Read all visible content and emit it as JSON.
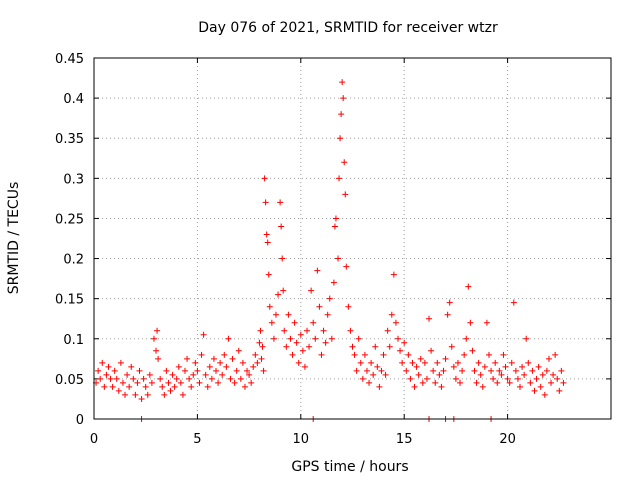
{
  "chart_data": {
    "type": "scatter",
    "title": "Day 076 of 2021, SRMTID for receiver wtzr",
    "xlabel": "GPS time / hours",
    "ylabel": "SRMTID / TECUs",
    "xlim": [
      0,
      25
    ],
    "ylim": [
      0,
      0.45
    ],
    "x_ticks": [
      0,
      5,
      10,
      15,
      20
    ],
    "x_tick_labels": [
      "0",
      "5",
      "10",
      "15",
      "20"
    ],
    "y_ticks": [
      0,
      0.05,
      0.1,
      0.15,
      0.2,
      0.25,
      0.3,
      0.35,
      0.4,
      0.45
    ],
    "y_tick_labels": [
      "0",
      "0.05",
      "0.1",
      "0.15",
      "0.2",
      "0.25",
      "0.3",
      "0.35",
      "0.4",
      "0.45"
    ],
    "grid": true,
    "marker": "+",
    "color": "#ff0000",
    "series": [
      {
        "name": "SRMTID",
        "points": [
          [
            0.1,
            0.045
          ],
          [
            0.2,
            0.06
          ],
          [
            0.3,
            0.05
          ],
          [
            0.4,
            0.07
          ],
          [
            0.5,
            0.04
          ],
          [
            0.6,
            0.055
          ],
          [
            0.7,
            0.065
          ],
          [
            0.8,
            0.05
          ],
          [
            0.9,
            0.04
          ],
          [
            1.0,
            0.06
          ],
          [
            1.1,
            0.05
          ],
          [
            1.2,
            0.035
          ],
          [
            1.3,
            0.07
          ],
          [
            1.4,
            0.045
          ],
          [
            1.5,
            0.03
          ],
          [
            1.6,
            0.055
          ],
          [
            1.7,
            0.04
          ],
          [
            1.8,
            0.065
          ],
          [
            1.9,
            0.05
          ],
          [
            2.0,
            0.03
          ],
          [
            2.1,
            0.045
          ],
          [
            2.2,
            0.06
          ],
          [
            2.3,
            0.025
          ],
          [
            2.4,
            0.05
          ],
          [
            2.5,
            0.04
          ],
          [
            2.6,
            0.03
          ],
          [
            2.7,
            0.055
          ],
          [
            2.8,
            0.045
          ],
          [
            2.9,
            0.1
          ],
          [
            3.0,
            0.085
          ],
          [
            3.05,
            0.11
          ],
          [
            3.1,
            0.075
          ],
          [
            3.2,
            0.05
          ],
          [
            3.3,
            0.04
          ],
          [
            3.4,
            0.03
          ],
          [
            3.5,
            0.06
          ],
          [
            3.6,
            0.045
          ],
          [
            3.7,
            0.035
          ],
          [
            3.8,
            0.055
          ],
          [
            3.9,
            0.04
          ],
          [
            4.0,
            0.05
          ],
          [
            4.1,
            0.065
          ],
          [
            4.2,
            0.045
          ],
          [
            4.3,
            0.03
          ],
          [
            4.4,
            0.06
          ],
          [
            4.5,
            0.075
          ],
          [
            4.6,
            0.05
          ],
          [
            4.7,
            0.04
          ],
          [
            4.8,
            0.055
          ],
          [
            4.9,
            0.07
          ],
          [
            5.0,
            0.06
          ],
          [
            5.1,
            0.045
          ],
          [
            5.2,
            0.08
          ],
          [
            5.3,
            0.105
          ],
          [
            5.4,
            0.055
          ],
          [
            5.5,
            0.04
          ],
          [
            5.6,
            0.065
          ],
          [
            5.7,
            0.05
          ],
          [
            5.8,
            0.075
          ],
          [
            5.9,
            0.06
          ],
          [
            6.0,
            0.045
          ],
          [
            6.1,
            0.07
          ],
          [
            6.2,
            0.055
          ],
          [
            6.3,
            0.08
          ],
          [
            6.4,
            0.065
          ],
          [
            6.5,
            0.1
          ],
          [
            6.6,
            0.05
          ],
          [
            6.7,
            0.075
          ],
          [
            6.8,
            0.045
          ],
          [
            6.9,
            0.06
          ],
          [
            7.0,
            0.085
          ],
          [
            7.1,
            0.05
          ],
          [
            7.2,
            0.07
          ],
          [
            7.3,
            0.04
          ],
          [
            7.4,
            0.06
          ],
          [
            7.5,
            0.055
          ],
          [
            7.6,
            0.045
          ],
          [
            7.7,
            0.065
          ],
          [
            7.8,
            0.08
          ],
          [
            7.9,
            0.07
          ],
          [
            8.0,
            0.095
          ],
          [
            8.05,
            0.11
          ],
          [
            8.1,
            0.075
          ],
          [
            8.15,
            0.09
          ],
          [
            8.2,
            0.06
          ],
          [
            8.25,
            0.3
          ],
          [
            8.3,
            0.27
          ],
          [
            8.35,
            0.23
          ],
          [
            8.4,
            0.22
          ],
          [
            8.45,
            0.18
          ],
          [
            8.5,
            0.14
          ],
          [
            8.6,
            0.12
          ],
          [
            8.7,
            0.1
          ],
          [
            8.8,
            0.13
          ],
          [
            8.9,
            0.155
          ],
          [
            9.0,
            0.27
          ],
          [
            9.05,
            0.24
          ],
          [
            9.1,
            0.2
          ],
          [
            9.15,
            0.16
          ],
          [
            9.2,
            0.11
          ],
          [
            9.3,
            0.09
          ],
          [
            9.4,
            0.13
          ],
          [
            9.5,
            0.1
          ],
          [
            9.6,
            0.08
          ],
          [
            9.7,
            0.12
          ],
          [
            9.8,
            0.095
          ],
          [
            9.9,
            0.07
          ],
          [
            10.0,
            0.105
          ],
          [
            10.1,
            0.085
          ],
          [
            10.2,
            0.065
          ],
          [
            10.3,
            0.11
          ],
          [
            10.4,
            0.09
          ],
          [
            10.5,
            0.16
          ],
          [
            10.6,
            0.12
          ],
          [
            10.7,
            0.1
          ],
          [
            10.8,
            0.185
          ],
          [
            10.9,
            0.14
          ],
          [
            11.0,
            0.08
          ],
          [
            11.1,
            0.11
          ],
          [
            11.2,
            0.095
          ],
          [
            11.3,
            0.13
          ],
          [
            11.4,
            0.15
          ],
          [
            11.5,
            0.1
          ],
          [
            11.6,
            0.17
          ],
          [
            11.65,
            0.24
          ],
          [
            11.7,
            0.25
          ],
          [
            11.8,
            0.2
          ],
          [
            11.85,
            0.3
          ],
          [
            11.9,
            0.35
          ],
          [
            11.95,
            0.38
          ],
          [
            12.0,
            0.42
          ],
          [
            12.05,
            0.4
          ],
          [
            12.1,
            0.32
          ],
          [
            12.15,
            0.28
          ],
          [
            12.2,
            0.19
          ],
          [
            12.3,
            0.14
          ],
          [
            12.4,
            0.11
          ],
          [
            12.5,
            0.09
          ],
          [
            12.6,
            0.08
          ],
          [
            12.7,
            0.06
          ],
          [
            12.8,
            0.1
          ],
          [
            12.9,
            0.07
          ],
          [
            13.0,
            0.05
          ],
          [
            13.1,
            0.08
          ],
          [
            13.2,
            0.06
          ],
          [
            13.3,
            0.045
          ],
          [
            13.4,
            0.07
          ],
          [
            13.5,
            0.055
          ],
          [
            13.6,
            0.09
          ],
          [
            13.7,
            0.065
          ],
          [
            13.8,
            0.04
          ],
          [
            13.9,
            0.06
          ],
          [
            14.0,
            0.08
          ],
          [
            14.1,
            0.055
          ],
          [
            14.2,
            0.11
          ],
          [
            14.3,
            0.09
          ],
          [
            14.4,
            0.13
          ],
          [
            14.5,
            0.18
          ],
          [
            14.6,
            0.12
          ],
          [
            14.7,
            0.1
          ],
          [
            14.8,
            0.085
          ],
          [
            14.9,
            0.07
          ],
          [
            15.0,
            0.095
          ],
          [
            15.1,
            0.06
          ],
          [
            15.2,
            0.08
          ],
          [
            15.3,
            0.05
          ],
          [
            15.4,
            0.07
          ],
          [
            15.5,
            0.04
          ],
          [
            15.6,
            0.065
          ],
          [
            15.7,
            0.055
          ],
          [
            15.8,
            0.075
          ],
          [
            15.9,
            0.045
          ],
          [
            16.0,
            0.07
          ],
          [
            16.1,
            0.05
          ],
          [
            16.2,
            0.125
          ],
          [
            16.3,
            0.085
          ],
          [
            16.4,
            0.06
          ],
          [
            16.5,
            0.045
          ],
          [
            16.6,
            0.07
          ],
          [
            16.7,
            0.055
          ],
          [
            16.8,
            0.04
          ],
          [
            16.9,
            0.06
          ],
          [
            17.0,
            0.075
          ],
          [
            17.1,
            0.13
          ],
          [
            17.2,
            0.145
          ],
          [
            17.3,
            0.09
          ],
          [
            17.4,
            0.065
          ],
          [
            17.5,
            0.05
          ],
          [
            17.6,
            0.07
          ],
          [
            17.7,
            0.045
          ],
          [
            17.8,
            0.06
          ],
          [
            17.9,
            0.08
          ],
          [
            18.0,
            0.1
          ],
          [
            18.1,
            0.165
          ],
          [
            18.2,
            0.12
          ],
          [
            18.3,
            0.085
          ],
          [
            18.4,
            0.06
          ],
          [
            18.5,
            0.045
          ],
          [
            18.6,
            0.07
          ],
          [
            18.7,
            0.055
          ],
          [
            18.8,
            0.04
          ],
          [
            18.9,
            0.065
          ],
          [
            19.0,
            0.12
          ],
          [
            19.1,
            0.08
          ],
          [
            19.2,
            0.06
          ],
          [
            19.3,
            0.05
          ],
          [
            19.4,
            0.07
          ],
          [
            19.5,
            0.045
          ],
          [
            19.6,
            0.06
          ],
          [
            19.7,
            0.055
          ],
          [
            19.8,
            0.08
          ],
          [
            19.9,
            0.065
          ],
          [
            20.0,
            0.05
          ],
          [
            20.1,
            0.045
          ],
          [
            20.2,
            0.07
          ],
          [
            20.3,
            0.145
          ],
          [
            20.4,
            0.06
          ],
          [
            20.5,
            0.05
          ],
          [
            20.6,
            0.04
          ],
          [
            20.7,
            0.065
          ],
          [
            20.8,
            0.055
          ],
          [
            20.9,
            0.1
          ],
          [
            21.0,
            0.07
          ],
          [
            21.1,
            0.045
          ],
          [
            21.2,
            0.06
          ],
          [
            21.3,
            0.035
          ],
          [
            21.4,
            0.05
          ],
          [
            21.5,
            0.065
          ],
          [
            21.6,
            0.04
          ],
          [
            21.7,
            0.055
          ],
          [
            21.8,
            0.03
          ],
          [
            21.9,
            0.06
          ],
          [
            22.0,
            0.075
          ],
          [
            22.1,
            0.045
          ],
          [
            22.2,
            0.055
          ],
          [
            22.3,
            0.08
          ],
          [
            22.4,
            0.05
          ],
          [
            22.5,
            0.035
          ],
          [
            22.6,
            0.06
          ],
          [
            22.7,
            0.045
          ],
          [
            2.3,
            0.0
          ],
          [
            10.6,
            0.0
          ],
          [
            16.2,
            0.0
          ],
          [
            17.0,
            0.0
          ],
          [
            17.4,
            0.0
          ],
          [
            19.2,
            0.0
          ]
        ]
      }
    ]
  }
}
